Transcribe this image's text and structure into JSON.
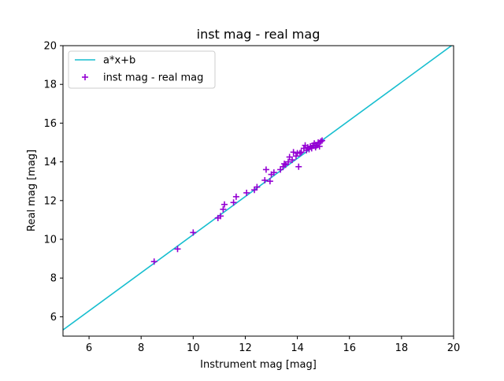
{
  "chart_data": {
    "type": "scatter",
    "title": "inst mag - real mag",
    "xlabel": "Instrument mag [mag]",
    "ylabel": "Real mag [mag]",
    "xlim": [
      5,
      20
    ],
    "ylim": [
      5,
      20
    ],
    "xticks": [
      6,
      8,
      10,
      12,
      14,
      16,
      18,
      20
    ],
    "yticks": [
      6,
      8,
      10,
      12,
      14,
      16,
      18,
      20
    ],
    "grid": false,
    "legend_position": "upper-left",
    "series": [
      {
        "name": "a*x+b",
        "kind": "line",
        "color": "#17becf",
        "x": [
          5,
          20
        ],
        "y": [
          5.32,
          20.08
        ]
      },
      {
        "name": "inst mag - real mag",
        "kind": "scatter",
        "marker": "+",
        "color": "#9400d3",
        "x": [
          8.5,
          9.4,
          10.0,
          10.95,
          11.05,
          11.15,
          11.2,
          11.55,
          11.65,
          12.05,
          12.35,
          12.45,
          12.75,
          12.8,
          12.95,
          13.0,
          13.1,
          13.35,
          13.45,
          13.5,
          13.55,
          13.65,
          13.7,
          13.8,
          13.85,
          13.95,
          14.0,
          14.05,
          14.1,
          14.15,
          14.25,
          14.3,
          14.35,
          14.4,
          14.45,
          14.5,
          14.55,
          14.6,
          14.65,
          14.7,
          14.75,
          14.8,
          14.85,
          14.9,
          14.95
        ],
        "y": [
          8.85,
          9.5,
          10.35,
          11.1,
          11.2,
          11.55,
          11.8,
          11.9,
          12.2,
          12.4,
          12.55,
          12.7,
          13.05,
          13.6,
          13.0,
          13.35,
          13.45,
          13.6,
          13.75,
          13.9,
          13.85,
          14.0,
          14.25,
          14.1,
          14.5,
          14.3,
          14.45,
          13.75,
          14.45,
          14.5,
          14.7,
          14.85,
          14.6,
          14.75,
          14.65,
          14.8,
          14.7,
          14.85,
          14.95,
          14.75,
          14.85,
          15.0,
          14.8,
          15.05,
          15.1
        ]
      }
    ]
  }
}
